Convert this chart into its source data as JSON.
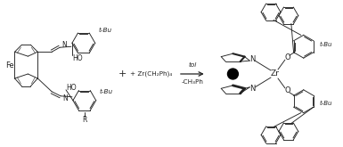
{
  "bg_color": "#ffffff",
  "line_color": "#222222",
  "reagent_text": "+ Zr(CH₂Ph)₄",
  "condition_top": "tol",
  "condition_bot": "-CH₃Ph",
  "fe_label": "Fe",
  "zr_label": "Zr",
  "ho_label1": "HO",
  "ho_label2": "HO",
  "tbu_label1": "t-Bu",
  "tbu_label2": "t-Bu",
  "tbu_label3": "t-Bu",
  "tbu_label4": "t-Bu",
  "r_label": "R",
  "n1": "N",
  "n2": "N",
  "o1": "O",
  "o2": "O",
  "plus": "+",
  "figw": 3.85,
  "figh": 1.65,
  "dpi": 100
}
